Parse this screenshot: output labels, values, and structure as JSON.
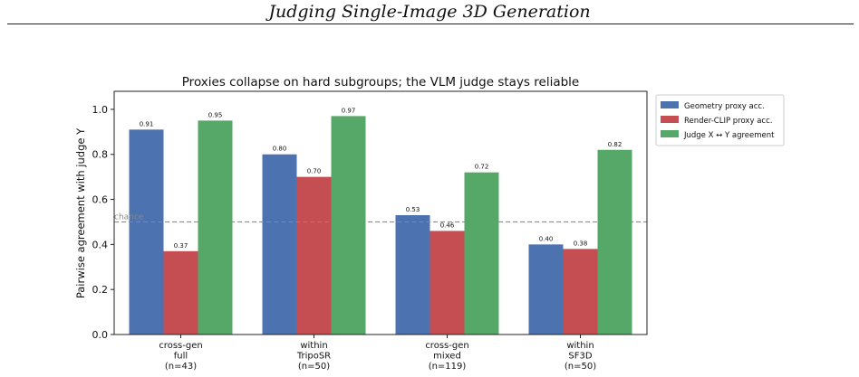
{
  "page": {
    "running_header": "Judging Single-Image 3D Generation"
  },
  "chart_data": {
    "type": "bar",
    "title": "Proxies collapse on hard subgroups; the VLM judge stays reliable",
    "xlabel": "",
    "ylabel": "Pairwise agreement with judge Y",
    "ylim": [
      0,
      1.08
    ],
    "yticks": [
      "0.0",
      "0.2",
      "0.4",
      "0.6",
      "0.8",
      "1.0"
    ],
    "categories": [
      [
        "cross-gen",
        "full",
        "(n=43)"
      ],
      [
        "within",
        "TripoSR",
        "(n=50)"
      ],
      [
        "cross-gen",
        "mixed",
        "(n=119)"
      ],
      [
        "within",
        "SF3D",
        "(n=50)"
      ]
    ],
    "series": [
      {
        "name": "Geometry proxy acc.",
        "color": "#4c72b0",
        "values": [
          0.91,
          0.8,
          0.53,
          0.4
        ],
        "labels": [
          "0.91",
          "0.80",
          "0.53",
          "0.40"
        ]
      },
      {
        "name": "Render-CLIP proxy acc.",
        "color": "#c44e52",
        "values": [
          0.37,
          0.7,
          0.46,
          0.38
        ],
        "labels": [
          "0.37",
          "0.70",
          "0.46",
          "0.38"
        ]
      },
      {
        "name": "Judge X ↔ Y agreement",
        "color": "#55a868",
        "values": [
          0.95,
          0.97,
          0.72,
          0.82
        ],
        "labels": [
          "0.95",
          "0.97",
          "0.72",
          "0.82"
        ]
      }
    ],
    "reference_line": {
      "value": 0.5,
      "label": "chance"
    },
    "legend_position": "outside-top-right",
    "grid": false
  }
}
